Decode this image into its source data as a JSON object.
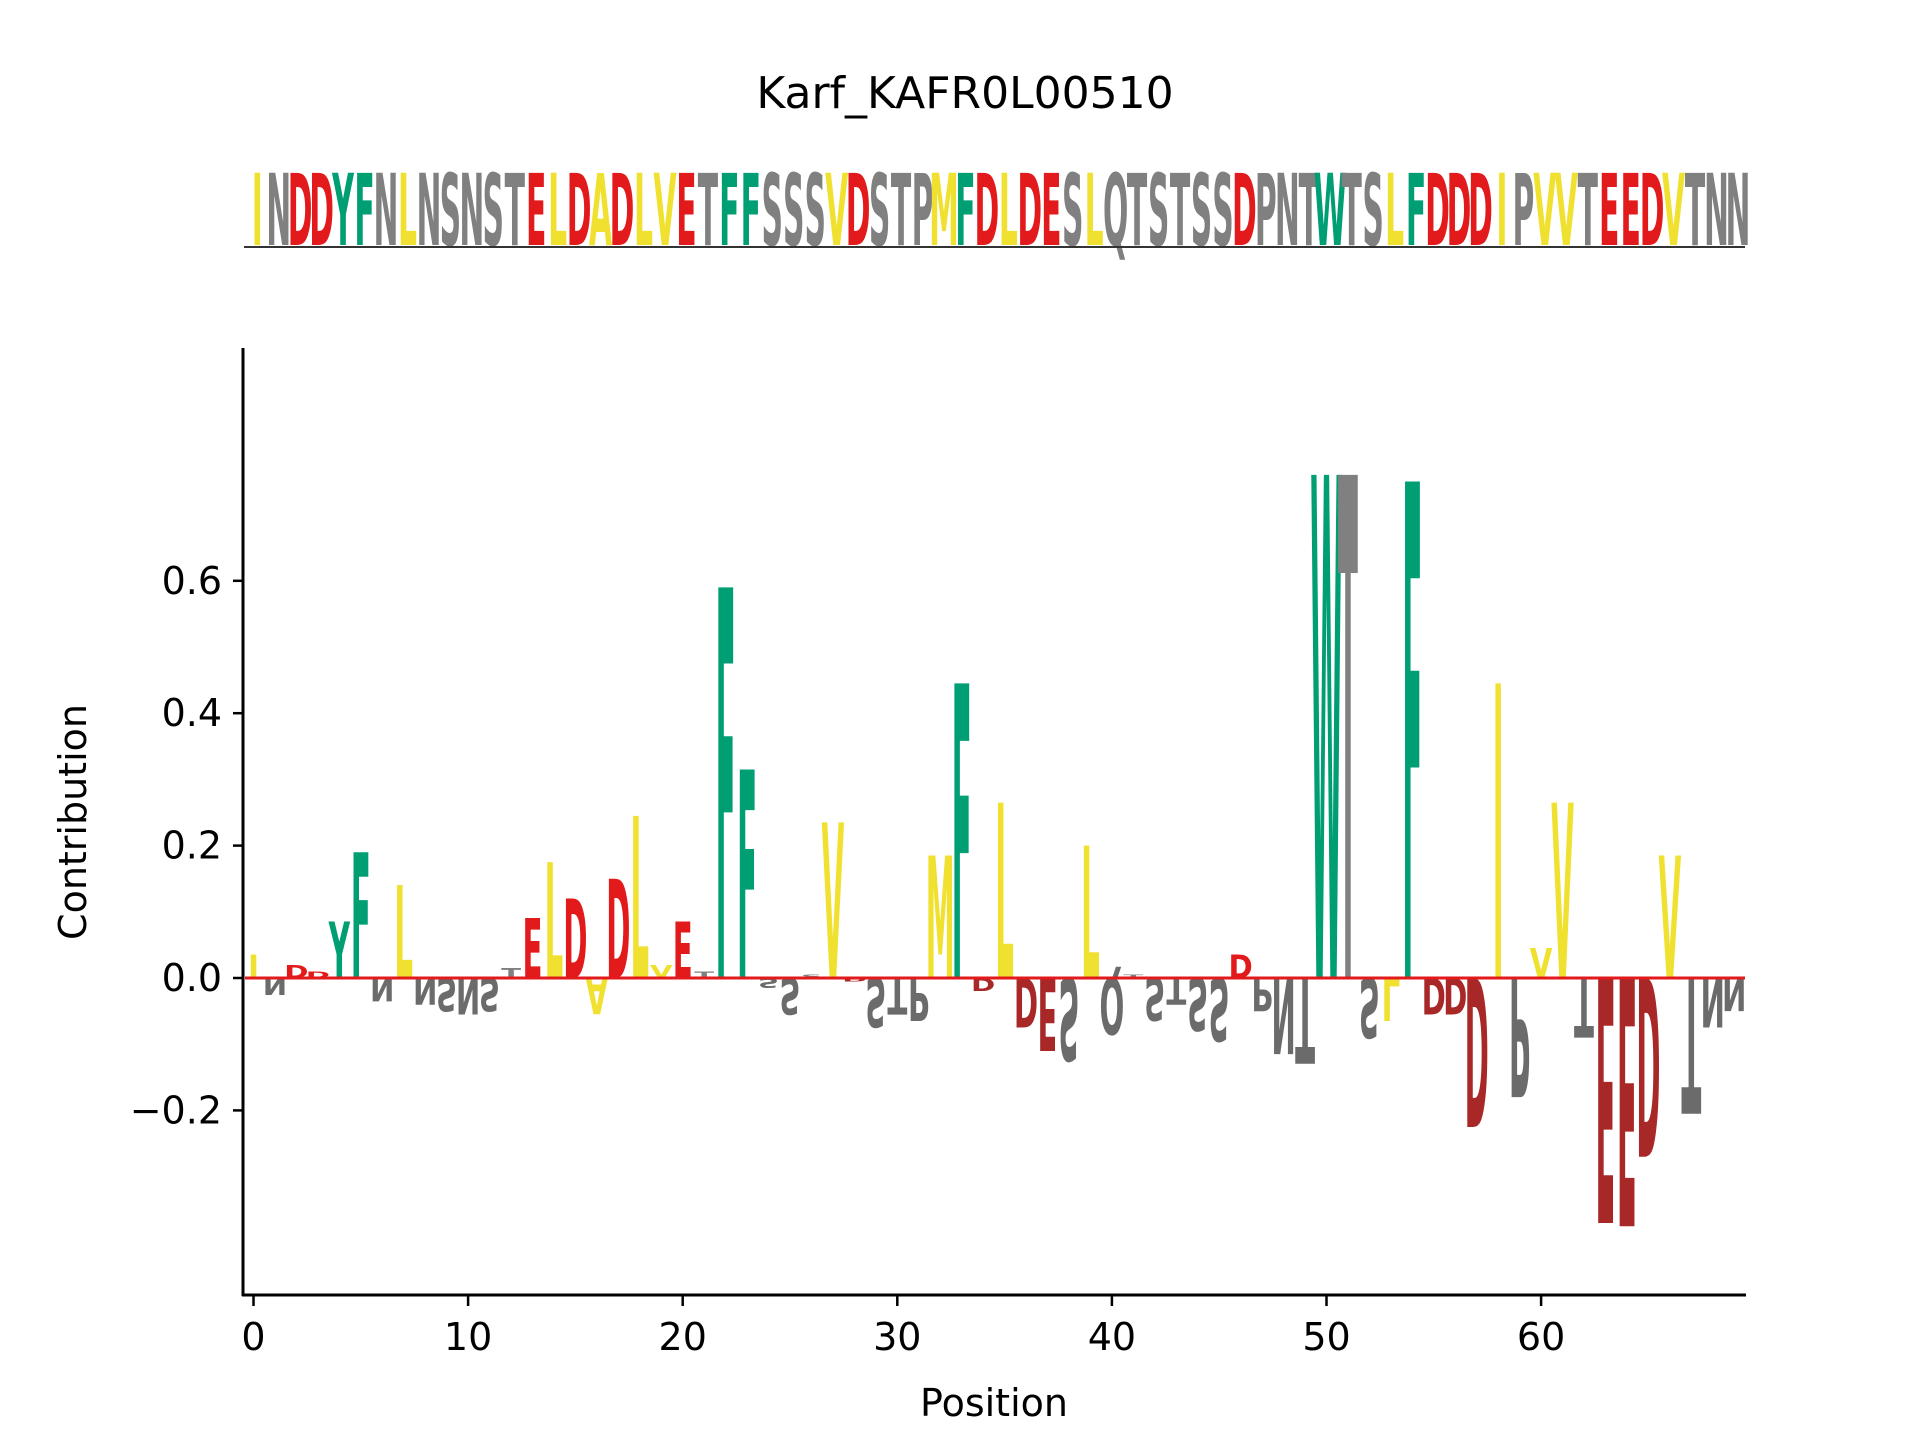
{
  "chart_data": {
    "type": "sequence-logo",
    "title": "Karf_KAFR0L00510",
    "xlabel": "Position",
    "ylabel": "Contribution",
    "sequence": "INDDYFNLNSNSTELDADLVETFFSSSVDSTPMFDLDESLQTSTSSDPNTWTSLFDDDIPVVTEEDVTNN",
    "xlim": [
      -0.5,
      69.5
    ],
    "ylim": [
      -0.38,
      0.76
    ],
    "xticks": [
      0,
      10,
      20,
      30,
      40,
      50,
      60
    ],
    "yticks": [
      -0.2,
      0.0,
      0.2,
      0.4,
      0.6
    ],
    "ytick_labels": [
      "−0.2",
      "0.0",
      "0.2",
      "0.4",
      "0.6"
    ],
    "grid": false,
    "contributions": [
      0.035,
      -0.025,
      0.02,
      0.01,
      0.085,
      0.19,
      -0.035,
      0.14,
      -0.04,
      -0.05,
      -0.055,
      -0.05,
      0.015,
      0.09,
      0.175,
      0.12,
      -0.055,
      0.15,
      0.245,
      0.02,
      0.085,
      0.01,
      0.59,
      0.315,
      -0.015,
      -0.055,
      0.005,
      0.235,
      -0.005,
      -0.075,
      -0.055,
      -0.065,
      0.185,
      0.445,
      -0.02,
      0.265,
      -0.075,
      -0.11,
      -0.125,
      0.2,
      -0.085,
      0.005,
      -0.065,
      -0.04,
      -0.08,
      -0.095,
      0.035,
      -0.05,
      -0.115,
      -0.13,
      0.76,
      0.76,
      -0.09,
      -0.065,
      0.75,
      -0.055,
      -0.055,
      -0.225,
      0.445,
      -0.18,
      0.045,
      0.265,
      -0.09,
      -0.37,
      -0.375,
      -0.27,
      0.185,
      -0.205,
      -0.075,
      -0.05
    ],
    "colors": {
      "hydrophobic": "#f0e130",
      "acidic": "#e31a1c",
      "acidic_negative": "#a82828",
      "aromatic": "#009e73",
      "neutral": "#808080",
      "neutral_negative": "#6b6b6b",
      "zero_line": "#e31a1c"
    }
  }
}
